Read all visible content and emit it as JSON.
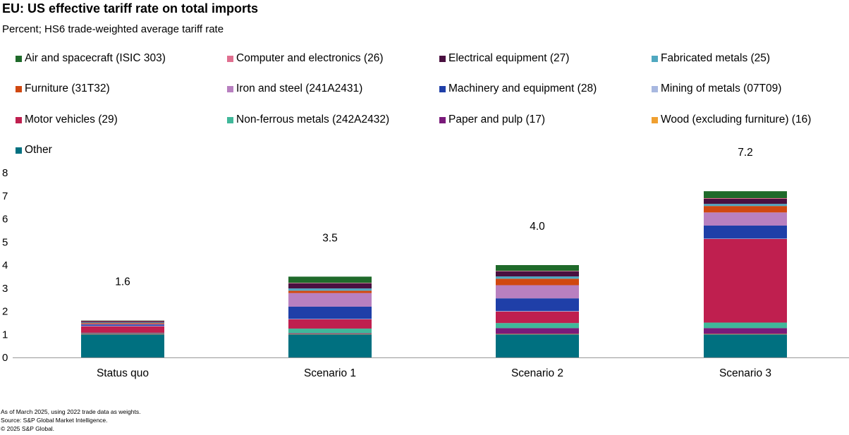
{
  "chart_data": {
    "type": "bar",
    "stacked": true,
    "title": "EU: US effective tariff rate on total imports",
    "subtitle": "Percent; HS6 trade-weighted average tariff rate",
    "xlabel": "",
    "ylabel": "",
    "categories": [
      "Status quo",
      "Scenario 1",
      "Scenario 2",
      "Scenario 3"
    ],
    "ylim": [
      0,
      8
    ],
    "yticks": [
      "0",
      "1",
      "2",
      "3",
      "4",
      "5",
      "6",
      "7",
      "8"
    ],
    "totals": [
      "1.6",
      "3.5",
      "4.0",
      "7.2"
    ],
    "grid": false,
    "legend_position": "top",
    "series": [
      {
        "name": "Other",
        "color": "#007080",
        "values": [
          1.0,
          1.0,
          1.0,
          1.0
        ]
      },
      {
        "name": "Wood (excluding furniture) (16)",
        "color": "#f0a030",
        "values": [
          0.02,
          0.02,
          0.02,
          0.02
        ]
      },
      {
        "name": "Paper and pulp (17)",
        "color": "#7a1a7a",
        "values": [
          0.03,
          0.03,
          0.25,
          0.25
        ]
      },
      {
        "name": "Non-ferrous metals (242A2432)",
        "color": "#40b89a",
        "values": [
          0.02,
          0.2,
          0.22,
          0.24
        ]
      },
      {
        "name": "Motor vehicles (29)",
        "color": "#bf1f4f",
        "values": [
          0.28,
          0.4,
          0.5,
          3.62
        ]
      },
      {
        "name": "Mining of metals (07T09)",
        "color": "#a8b8e0",
        "values": [
          0.02,
          0.02,
          0.02,
          0.02
        ]
      },
      {
        "name": "Machinery and equipment (28)",
        "color": "#1f3fa8",
        "values": [
          0.05,
          0.53,
          0.55,
          0.56
        ]
      },
      {
        "name": "Iron and steel (241A2431)",
        "color": "#b880c0",
        "values": [
          0.03,
          0.59,
          0.57,
          0.57
        ]
      },
      {
        "name": "Furniture (31T32)",
        "color": "#d04810",
        "values": [
          0.04,
          0.1,
          0.28,
          0.28
        ]
      },
      {
        "name": "Fabricated metals (25)",
        "color": "#50a8c0",
        "values": [
          0.03,
          0.1,
          0.1,
          0.09
        ]
      },
      {
        "name": "Electrical equipment (27)",
        "color": "#4a1040",
        "values": [
          0.05,
          0.22,
          0.22,
          0.22
        ]
      },
      {
        "name": "Computer and electronics (26)",
        "color": "#e07090",
        "values": [
          0.02,
          0.02,
          0.02,
          0.03
        ]
      },
      {
        "name": "Air and spacecraft (ISIC 303)",
        "color": "#1f6a2a",
        "values": [
          0.01,
          0.27,
          0.25,
          0.3
        ]
      }
    ],
    "legend_order": [
      "Air and spacecraft (ISIC 303)",
      "Computer and electronics (26)",
      "Electrical equipment (27)",
      "Fabricated metals (25)",
      "Furniture (31T32)",
      "Iron and steel (241A2431)",
      "Machinery and equipment (28)",
      "Mining of metals (07T09)",
      "Motor vehicles (29)",
      "Non-ferrous metals (242A2432)",
      "Paper and pulp (17)",
      "Wood (excluding furniture) (16)",
      "Other"
    ]
  },
  "footnotes": [
    "As of March 2025, using 2022 trade data as weights.",
    "Source: S&P Global Market Intelligence.",
    "© 2025 S&P Global."
  ]
}
